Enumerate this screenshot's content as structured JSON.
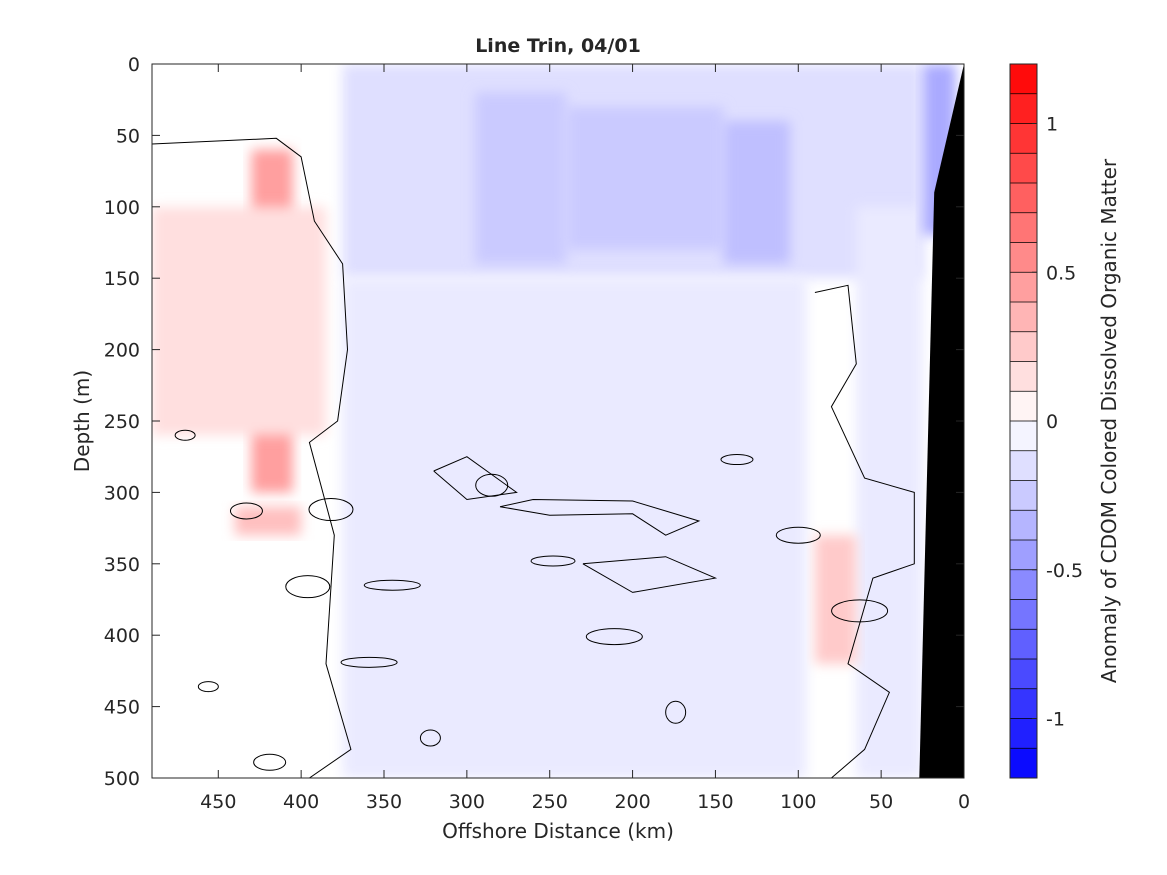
{
  "chart_data": {
    "type": "contour",
    "title": "Line Trin, 04/01",
    "xlabel": "Offshore Distance (km)",
    "ylabel": "Depth (m)",
    "colorbar_label": "Anomaly of CDOM Colored Dissolved Organic Matter",
    "x_range": [
      490,
      0
    ],
    "x_ticks": [
      450,
      400,
      350,
      300,
      250,
      200,
      150,
      100,
      50,
      0
    ],
    "y_range": [
      0,
      500
    ],
    "y_ticks": [
      0,
      50,
      100,
      150,
      200,
      250,
      300,
      350,
      400,
      450,
      500
    ],
    "clim": [
      -1.2,
      1.2
    ],
    "colorbar_ticks": [
      1,
      0.5,
      0,
      -0.5,
      -1
    ],
    "colorbar_tick_labels": [
      "1",
      "0.5",
      "0",
      "-0.5",
      "-1"
    ],
    "colorbar_steps": [
      1.15,
      1.05,
      0.95,
      0.85,
      0.75,
      0.65,
      0.55,
      0.45,
      0.35,
      0.25,
      0.15,
      0.05,
      -0.05,
      -0.15,
      -0.25,
      -0.35,
      -0.45,
      -0.55,
      -0.65,
      -0.75,
      -0.85,
      -0.95,
      -1.05,
      -1.15
    ],
    "colormap": {
      "negative": "#0000ff",
      "zero": "#ffffff",
      "positive": "#ff0000"
    },
    "field_regions": [
      {
        "label": "surface negative band",
        "x0": 375,
        "x1": 25,
        "y0": 0,
        "y1": 150,
        "value": -0.15
      },
      {
        "label": "negative core west",
        "x0": 295,
        "x1": 240,
        "y0": 20,
        "y1": 140,
        "value": -0.25
      },
      {
        "label": "negative core central",
        "x0": 240,
        "x1": 145,
        "y0": 30,
        "y1": 130,
        "value": -0.25
      },
      {
        "label": "negative core east",
        "x0": 145,
        "x1": 105,
        "y0": 40,
        "y1": 140,
        "value": -0.3
      },
      {
        "label": "deep negative field",
        "x0": 375,
        "x1": 95,
        "y0": 150,
        "y1": 500,
        "value": -0.1
      },
      {
        "label": "deep negative east",
        "x0": 65,
        "x1": 25,
        "y0": 100,
        "y1": 500,
        "value": -0.1
      },
      {
        "label": "nearshore surface negative",
        "x0": 25,
        "x1": 5,
        "y0": 0,
        "y1": 120,
        "value": -0.4
      },
      {
        "label": "positive plume",
        "x0": 430,
        "x1": 405,
        "y0": 60,
        "y1": 300,
        "value": 0.45
      },
      {
        "label": "positive halo",
        "x0": 490,
        "x1": 385,
        "y0": 100,
        "y1": 260,
        "value": 0.15
      },
      {
        "label": "deep positive patch",
        "x0": 90,
        "x1": 65,
        "y0": 330,
        "y1": 420,
        "value": 0.25
      },
      {
        "label": "positive patch 320m",
        "x0": 440,
        "x1": 400,
        "y0": 310,
        "y1": 330,
        "value": 0.3
      }
    ],
    "topography": {
      "label": "seafloor",
      "color": "#000000",
      "polygon_km_m": [
        [
          0,
          0
        ],
        [
          18,
          90
        ],
        [
          27,
          500
        ],
        [
          0,
          500
        ]
      ]
    }
  }
}
